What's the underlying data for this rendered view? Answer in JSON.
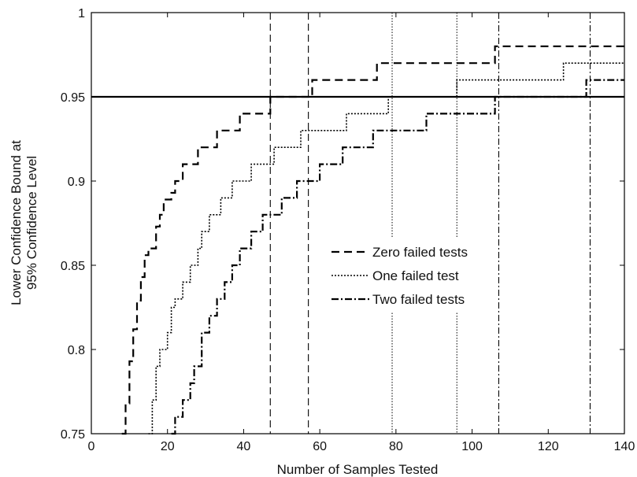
{
  "chart_data": {
    "type": "line",
    "title": "",
    "xlabel": "Number of Samples Tested",
    "ylabel_lines": [
      "Lower Confidence Bound at",
      "95% Confidence Level"
    ],
    "xlim": [
      0,
      140
    ],
    "ylim": [
      0.75,
      1
    ],
    "xticks": [
      0,
      20,
      40,
      60,
      80,
      100,
      120,
      140
    ],
    "yticks": [
      0.75,
      0.8,
      0.85,
      0.9,
      0.95,
      1
    ],
    "ytick_labels": [
      "0.75",
      "0.8",
      "0.85",
      "0.9",
      "0.95",
      "1"
    ],
    "grid": false,
    "legend_placement": "center-right",
    "reference_line": {
      "y": 0.95,
      "style": "solid"
    },
    "vertical_markers": [
      {
        "x": 47,
        "style": "dashed"
      },
      {
        "x": 57,
        "style": "dashed"
      },
      {
        "x": 79,
        "style": "dotted"
      },
      {
        "x": 96,
        "style": "dotted"
      },
      {
        "x": 107,
        "style": "dashdot"
      },
      {
        "x": 131,
        "style": "dashdot"
      }
    ],
    "series": [
      {
        "name": "Zero failed tests",
        "style": "dashed",
        "steps": [
          [
            8,
            0.748
          ],
          [
            9,
            0.768
          ],
          [
            10,
            0.793
          ],
          [
            11,
            0.812
          ],
          [
            12,
            0.829
          ],
          [
            13,
            0.843
          ],
          [
            14,
            0.856
          ],
          [
            15,
            0.86
          ],
          [
            17,
            0.873
          ],
          [
            18,
            0.88
          ],
          [
            19,
            0.889
          ],
          [
            21,
            0.893
          ],
          [
            22,
            0.9
          ],
          [
            24,
            0.91
          ],
          [
            26,
            0.91
          ],
          [
            28,
            0.92
          ],
          [
            30,
            0.92
          ],
          [
            33,
            0.93
          ],
          [
            36,
            0.93
          ],
          [
            39,
            0.94
          ],
          [
            46,
            0.94
          ],
          [
            47,
            0.95
          ],
          [
            57,
            0.95
          ],
          [
            58,
            0.96
          ],
          [
            74,
            0.96
          ],
          [
            75,
            0.97
          ],
          [
            105,
            0.97
          ],
          [
            106,
            0.98
          ],
          [
            140,
            0.98
          ]
        ]
      },
      {
        "name": "One failed test",
        "style": "dotted",
        "steps": [
          [
            15,
            0.748
          ],
          [
            16,
            0.77
          ],
          [
            17,
            0.79
          ],
          [
            18,
            0.8
          ],
          [
            20,
            0.81
          ],
          [
            21,
            0.825
          ],
          [
            22,
            0.83
          ],
          [
            24,
            0.84
          ],
          [
            26,
            0.85
          ],
          [
            28,
            0.86
          ],
          [
            29,
            0.87
          ],
          [
            31,
            0.88
          ],
          [
            34,
            0.89
          ],
          [
            37,
            0.9
          ],
          [
            42,
            0.91
          ],
          [
            48,
            0.92
          ],
          [
            55,
            0.93
          ],
          [
            67,
            0.94
          ],
          [
            78,
            0.95
          ],
          [
            96,
            0.96
          ],
          [
            124,
            0.97
          ],
          [
            140,
            0.97
          ]
        ]
      },
      {
        "name": "Two failed tests",
        "style": "dashdot",
        "steps": [
          [
            21,
            0.748
          ],
          [
            22,
            0.76
          ],
          [
            24,
            0.77
          ],
          [
            26,
            0.78
          ],
          [
            27,
            0.79
          ],
          [
            29,
            0.81
          ],
          [
            31,
            0.82
          ],
          [
            33,
            0.83
          ],
          [
            35,
            0.84
          ],
          [
            37,
            0.85
          ],
          [
            39,
            0.86
          ],
          [
            42,
            0.87
          ],
          [
            45,
            0.88
          ],
          [
            50,
            0.89
          ],
          [
            54,
            0.9
          ],
          [
            60,
            0.91
          ],
          [
            66,
            0.92
          ],
          [
            74,
            0.93
          ],
          [
            88,
            0.94
          ],
          [
            106,
            0.95
          ],
          [
            130,
            0.96
          ],
          [
            140,
            0.96
          ]
        ]
      }
    ]
  }
}
